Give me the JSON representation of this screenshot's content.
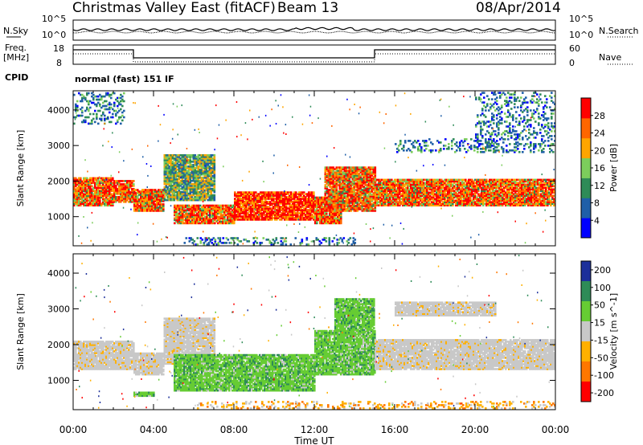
{
  "header": {
    "station": "Christmas Valley East (fitACF)",
    "beam": "Beam 13",
    "date": "08/Apr/2014"
  },
  "nsky_panel": {
    "left_label": "N.Sky",
    "right_label": "N.Search",
    "left_ticks": [
      "10^5",
      "10^0"
    ],
    "right_ticks": [
      "10^5",
      "10^0"
    ]
  },
  "freq_panel": {
    "left_label_1": "Freq.",
    "left_label_2": "[MHz]",
    "left_ticks": [
      "18",
      "8"
    ],
    "right_label": "Nave",
    "right_ticks": [
      "60",
      "0"
    ]
  },
  "cpid": {
    "label": "CPID",
    "mode": "normal (fast) 151 IF"
  },
  "chart_data": [
    {
      "type": "heatmap",
      "title": "",
      "ylabel": "Slant Range [km]",
      "xlabel": "Time UT",
      "x_ticks": [
        "00:00",
        "04:00",
        "08:00",
        "12:00",
        "16:00",
        "20:00",
        "00:00"
      ],
      "x_range_hours": [
        0,
        24
      ],
      "y_ticks": [
        1000,
        2000,
        3000,
        4000
      ],
      "ylim": [
        180,
        4540
      ],
      "colorbar_label": "Power [dB]",
      "colorbar_ticks": [
        4,
        8,
        12,
        16,
        20,
        24,
        28
      ],
      "colorbar_range": [
        0,
        32
      ],
      "colors": [
        "#0000ff",
        "#1f5fa8",
        "#2e8b57",
        "#7ccd5c",
        "#ffa500",
        "#ff6600",
        "#ff0000"
      ],
      "echo_bands": [
        {
          "t": [
            0.0,
            2.0
          ],
          "r": [
            1300,
            2100
          ],
          "level": "high"
        },
        {
          "t": [
            2.0,
            3.0
          ],
          "r": [
            1400,
            2000
          ],
          "level": "high"
        },
        {
          "t": [
            3.0,
            4.5
          ],
          "r": [
            1150,
            1750
          ],
          "level": "high"
        },
        {
          "t": [
            4.5,
            7.0
          ],
          "r": [
            1450,
            2750
          ],
          "level": "medium"
        },
        {
          "t": [
            5.0,
            8.0
          ],
          "r": [
            800,
            1300
          ],
          "level": "high"
        },
        {
          "t": [
            8.0,
            12.0
          ],
          "r": [
            900,
            1700
          ],
          "level": "very-high"
        },
        {
          "t": [
            12.0,
            13.3
          ],
          "r": [
            800,
            1550
          ],
          "level": "high"
        },
        {
          "t": [
            12.5,
            15.0
          ],
          "r": [
            1150,
            2400
          ],
          "level": "high"
        },
        {
          "t": [
            15.0,
            24.0
          ],
          "r": [
            1300,
            2050
          ],
          "level": "high"
        },
        {
          "t": [
            16.0,
            21.0
          ],
          "r": [
            2800,
            3200
          ],
          "level": "low"
        },
        {
          "t": [
            20.0,
            24.0
          ],
          "r": [
            2800,
            4500
          ],
          "level": "low"
        },
        {
          "t": [
            0.0,
            2.5
          ],
          "r": [
            3600,
            4500
          ],
          "level": "low"
        },
        {
          "t": [
            5.5,
            14.0
          ],
          "r": [
            200,
            400
          ],
          "level": "low"
        }
      ]
    },
    {
      "type": "heatmap",
      "title": "",
      "ylabel": "Slant Range [km]",
      "xlabel": "Time UT",
      "x_ticks": [
        "00:00",
        "04:00",
        "08:00",
        "12:00",
        "16:00",
        "20:00",
        "00:00"
      ],
      "x_range_hours": [
        0,
        24
      ],
      "y_ticks": [
        1000,
        2000,
        3000,
        4000
      ],
      "ylim": [
        180,
        4540
      ],
      "colorbar_label": "Velocity [m s^-1]",
      "colorbar_ticks": [
        200,
        100,
        50,
        15,
        -15,
        -50,
        -100,
        -200
      ],
      "colorbar_range": [
        -250,
        250
      ],
      "colors": [
        "#1c2f9a",
        "#2e8b57",
        "#66cc33",
        "#c8c8c8",
        "#ffb000",
        "#ff7700",
        "#ff0000"
      ],
      "echo_bands": [
        {
          "t": [
            0.0,
            3.0
          ],
          "r": [
            1300,
            2100
          ],
          "level": "ground-scatter"
        },
        {
          "t": [
            3.0,
            4.5
          ],
          "r": [
            1150,
            1750
          ],
          "level": "ground-scatter"
        },
        {
          "t": [
            4.5,
            7.0
          ],
          "r": [
            1450,
            2750
          ],
          "level": "ground-scatter"
        },
        {
          "t": [
            5.0,
            12.0
          ],
          "r": [
            700,
            1700
          ],
          "level": "positive-50"
        },
        {
          "t": [
            12.0,
            15.0
          ],
          "r": [
            1150,
            2400
          ],
          "level": "positive-50"
        },
        {
          "t": [
            13.0,
            15.0
          ],
          "r": [
            2400,
            3300
          ],
          "level": "positive-50"
        },
        {
          "t": [
            15.0,
            24.0
          ],
          "r": [
            1300,
            2150
          ],
          "level": "ground-scatter"
        },
        {
          "t": [
            16.0,
            21.0
          ],
          "r": [
            2800,
            3200
          ],
          "level": "ground-scatter"
        },
        {
          "t": [
            3.0,
            4.0
          ],
          "r": [
            550,
            650
          ],
          "level": "positive-50"
        },
        {
          "t": [
            6.0,
            24.0
          ],
          "r": [
            200,
            400
          ],
          "level": "negative-50"
        }
      ]
    }
  ]
}
